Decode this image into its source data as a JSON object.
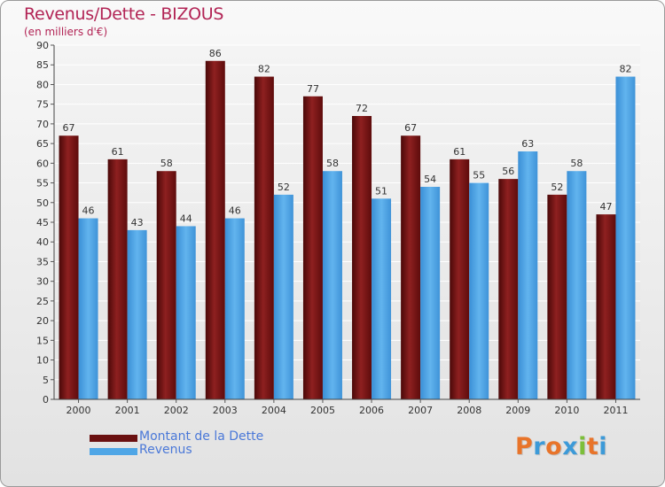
{
  "chart_data": {
    "type": "bar",
    "title": "Revenus/Dette - BIZOUS",
    "subtitle": "(en milliers d'€)",
    "categories": [
      "2000",
      "2001",
      "2002",
      "2003",
      "2004",
      "2005",
      "2006",
      "2007",
      "2008",
      "2009",
      "2010",
      "2011"
    ],
    "series": [
      {
        "name": "Montant de la Dette",
        "values": [
          67,
          61,
          58,
          86,
          82,
          77,
          72,
          67,
          61,
          56,
          52,
          47
        ],
        "color": "#7a1414"
      },
      {
        "name": "Revenus",
        "values": [
          46,
          43,
          44,
          46,
          52,
          58,
          51,
          54,
          55,
          63,
          58,
          82
        ],
        "color": "#4fa6e6"
      }
    ],
    "ylim": [
      0,
      90
    ],
    "yticks": [
      0,
      5,
      10,
      15,
      20,
      25,
      30,
      35,
      40,
      45,
      50,
      55,
      60,
      65,
      70,
      75,
      80,
      85,
      90
    ],
    "grid": true,
    "legend_position": "bottom-left"
  },
  "logo": {
    "text": "Proxiti",
    "colors": [
      "#e8742a",
      "#3c9ad8",
      "#e8742a",
      "#3c9ad8",
      "#7cbf3a",
      "#e8742a",
      "#3c9ad8"
    ]
  }
}
